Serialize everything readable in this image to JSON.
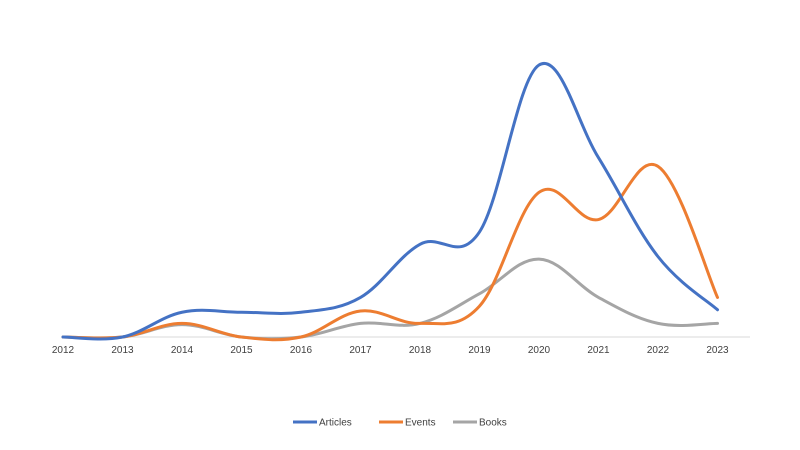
{
  "chart_data": {
    "type": "line",
    "title": "",
    "xlabel": "",
    "ylabel": "",
    "categories": [
      "2012",
      "2013",
      "2014",
      "2015",
      "2016",
      "2017",
      "2018",
      "2019",
      "2020",
      "2021",
      "2022",
      "2023"
    ],
    "ylim": [
      0,
      220
    ],
    "grid": false,
    "legend_position": "bottom",
    "series": [
      {
        "name": "Articles",
        "color": "#4472C4",
        "values": [
          0,
          0,
          20,
          20,
          20,
          32,
          75,
          85,
          220,
          145,
          65,
          22
        ]
      },
      {
        "name": "Events",
        "color": "#ED7D31",
        "values": [
          0,
          0,
          11,
          0,
          0,
          21,
          11,
          25,
          117,
          95,
          138,
          32
        ]
      },
      {
        "name": "Books",
        "color": "#A5A5A5",
        "values": [
          0,
          0,
          10,
          0,
          0,
          11,
          11,
          35,
          63,
          32,
          11,
          11
        ]
      }
    ]
  }
}
